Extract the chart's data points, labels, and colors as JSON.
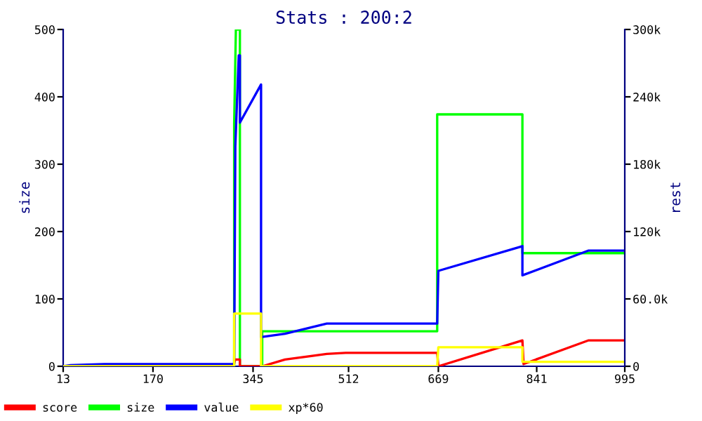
{
  "chart_data": {
    "type": "line",
    "title": "Stats : 200:2",
    "ylabel": "size",
    "y2label": "rest",
    "xlim": [
      13,
      995
    ],
    "xticks": [
      13,
      170,
      345,
      512,
      669,
      841,
      995
    ],
    "ylim": [
      0,
      500
    ],
    "yticks": [
      0,
      100,
      200,
      300,
      400,
      500
    ],
    "y2lim": [
      0,
      300000
    ],
    "y2ticks": [
      0,
      {
        "value": 60000,
        "label": "60.0k"
      },
      {
        "value": 120000,
        "label": "120k"
      },
      {
        "value": 180000,
        "label": "180k"
      },
      {
        "value": 240000,
        "label": "240k"
      },
      {
        "value": 300000,
        "label": "300k"
      }
    ],
    "grid": false,
    "legend": "bottom",
    "line_style": "solid",
    "marker": "none",
    "series": [
      {
        "name": "score",
        "color": "#ff0000",
        "axis": "y2",
        "x": [
          13,
          310,
          314,
          322,
          322,
          361,
          401,
          474,
          507,
          667,
          667,
          669,
          816,
          816,
          818,
          931,
          995
        ],
        "values": [
          0,
          0,
          6000,
          6000,
          0,
          0,
          6000,
          11000,
          12000,
          12000,
          12000,
          0,
          23000,
          23000,
          2000,
          23000,
          23000
        ]
      },
      {
        "name": "size",
        "color": "#00ff00",
        "x": [
          13,
          312,
          312,
          315,
          322,
          322,
          361,
          361,
          667,
          667,
          667,
          816,
          816,
          995
        ],
        "values": [
          0,
          0,
          360,
          500,
          500,
          0,
          0,
          52,
          52,
          210,
          374,
          374,
          168,
          168
        ]
      },
      {
        "name": "value",
        "color": "#0000ff",
        "axis": "y2",
        "x": [
          13,
          26,
          85,
          300,
          312,
          314,
          320,
          322,
          322,
          359,
          359,
          401,
          474,
          507,
          667,
          669,
          816,
          816,
          931,
          995
        ],
        "values": [
          0,
          1000,
          2000,
          2000,
          2000,
          196000,
          277000,
          277000,
          217000,
          251000,
          26000,
          29000,
          38000,
          38000,
          38000,
          85000,
          107000,
          81000,
          103000,
          103000
        ]
      },
      {
        "name": "xp*60",
        "color": "#ffff00",
        "axis": "y2",
        "x": [
          13,
          312,
          312,
          359,
          359,
          667,
          669,
          816,
          816,
          995
        ],
        "values": [
          0,
          0,
          47000,
          47000,
          0,
          0,
          17000,
          17000,
          4000,
          4000
        ]
      }
    ]
  }
}
